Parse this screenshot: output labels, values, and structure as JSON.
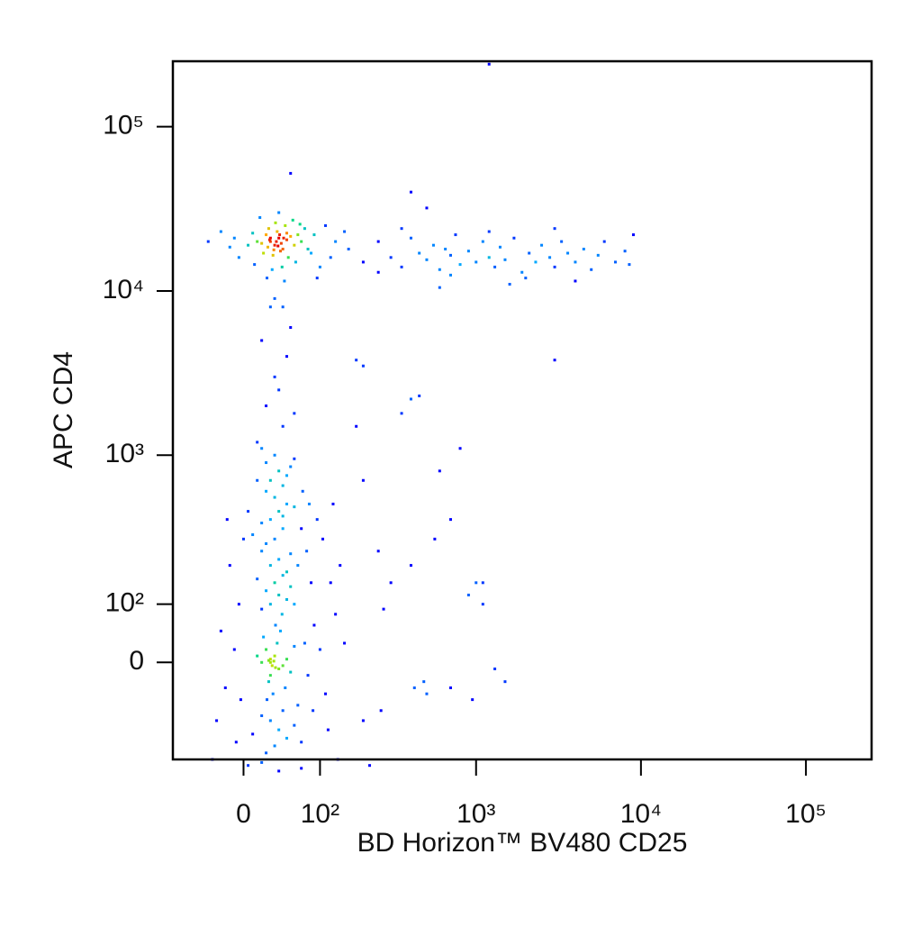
{
  "chart_data": {
    "type": "scatter",
    "x_label": "BD Horizon™ BV480 CD25",
    "y_label": "APC CD4",
    "xscale": "biexponential",
    "yscale": "biexponential",
    "color_by": "density",
    "xlim": [
      -90,
      250000
    ],
    "ylim": [
      -200,
      250000
    ],
    "xticks": [
      0,
      {
        "value": 100,
        "label": "10²"
      },
      {
        "value": 1000,
        "label": "10³"
      },
      {
        "value": 10000,
        "label": "10⁴"
      },
      {
        "value": 100000,
        "label": "10⁵"
      }
    ],
    "yticks": [
      0,
      {
        "value": 100,
        "label": "10²"
      },
      {
        "value": 1000,
        "label": "10³"
      },
      {
        "value": 10000,
        "label": "10⁴"
      },
      {
        "value": 100000,
        "label": "10⁵"
      }
    ],
    "x": [
      30,
      35,
      40,
      25,
      45,
      50,
      20,
      38,
      42,
      28,
      55,
      15,
      60,
      33,
      48,
      10,
      65,
      22,
      52,
      36,
      5,
      70,
      -10,
      80,
      -25,
      44,
      32,
      58,
      18,
      75,
      -5,
      90,
      26,
      62,
      40,
      12,
      85,
      47,
      -15,
      68,
      30,
      37,
      43,
      27,
      50,
      34,
      41,
      29,
      46,
      39,
      110,
      130,
      150,
      120,
      100,
      -40,
      95,
      35,
      45,
      55,
      160,
      200,
      250,
      300,
      350,
      400,
      450,
      500,
      550,
      600,
      650,
      700,
      750,
      800,
      900,
      1000,
      1100,
      1200,
      1300,
      1400,
      1500,
      1700,
      1900,
      2100,
      2300,
      2500,
      2800,
      3000,
      3300,
      3600,
      4000,
      4500,
      5000,
      5500,
      6000,
      7000,
      8000,
      8500,
      9000,
      250,
      350,
      700,
      1200,
      2000,
      3000,
      1600,
      600,
      4000,
      400,
      500,
      20,
      35,
      50,
      25,
      45,
      30,
      40,
      55,
      15,
      60,
      200,
      180,
      400,
      450,
      3000,
      30,
      35,
      40,
      25,
      45,
      20,
      50,
      30,
      38,
      28,
      42,
      33,
      22,
      55,
      15,
      60,
      48,
      36,
      26,
      44,
      30,
      40,
      20,
      50,
      35,
      25,
      45,
      55,
      15,
      60,
      30,
      40,
      20,
      50,
      35,
      25,
      45,
      55,
      10,
      65,
      30,
      40,
      20,
      50,
      35,
      25,
      45,
      60,
      5,
      70,
      30,
      40,
      20,
      50,
      35,
      25,
      45,
      60,
      10,
      65,
      -10,
      -20,
      -5,
      -15,
      -25,
      -30,
      0,
      -8,
      -18,
      -3,
      75,
      80,
      85,
      90,
      70,
      78,
      88,
      95,
      72,
      82,
      30,
      40,
      25,
      45,
      35,
      50,
      20,
      55,
      15,
      60,
      100,
      110,
      120,
      105,
      130,
      115,
      140,
      125,
      150,
      135,
      -35,
      5,
      40,
      70,
      20,
      30,
      32,
      28,
      36,
      34,
      200,
      250,
      300,
      400,
      500,
      600,
      700,
      800,
      900,
      1000,
      1100,
      1500,
      950,
      200,
      260,
      420,
      480,
      180,
      220,
      700,
      350,
      1300,
      1100,
      560,
      270,
      1200
    ],
    "values": [
      20000,
      19000,
      21000,
      22000,
      18000,
      20500,
      19500,
      23000,
      17500,
      24000,
      21500,
      20000,
      19000,
      16500,
      25000,
      22500,
      22000,
      17000,
      16000,
      26000,
      19000,
      20000,
      21000,
      18000,
      23000,
      14000,
      13500,
      27000,
      28000,
      24000,
      16000,
      22000,
      12000,
      15000,
      30000,
      14500,
      17000,
      11500,
      18500,
      25500,
      21000,
      20000,
      19500,
      18500,
      22500,
      17800,
      22000,
      20500,
      21000,
      18800,
      25000,
      20000,
      23000,
      16000,
      14000,
      20000,
      12000,
      9000,
      8000,
      52000,
      18000,
      15000,
      20000,
      16000,
      14000,
      21000,
      17000,
      15500,
      19000,
      13500,
      18000,
      16500,
      22000,
      14500,
      17500,
      15000,
      20000,
      16000,
      14000,
      18500,
      15500,
      21000,
      13000,
      17000,
      15000,
      19000,
      16000,
      14000,
      20000,
      17000,
      15000,
      18000,
      13500,
      16500,
      20000,
      15000,
      17500,
      14500,
      22000,
      13000,
      24000,
      12500,
      23000,
      12000,
      24000,
      11000,
      10500,
      11500,
      40000,
      32000,
      5000,
      3000,
      4000,
      2000,
      1500,
      8000,
      2500,
      6000,
      1200,
      1800,
      3500,
      3800,
      2200,
      2300,
      3800,
      0,
      10,
      -10,
      20,
      -5,
      0,
      5,
      -20,
      30,
      -30,
      50,
      -50,
      40,
      -15,
      10,
      25,
      -40,
      60,
      -60,
      80,
      100,
      120,
      90,
      110,
      150,
      130,
      170,
      140,
      160,
      100,
      200,
      220,
      250,
      180,
      300,
      280,
      350,
      240,
      320,
      200,
      400,
      450,
      380,
      500,
      550,
      600,
      420,
      480,
      450,
      350,
      -100,
      -120,
      -90,
      -140,
      -160,
      -180,
      -80,
      -110,
      -130,
      -70,
      20,
      -40,
      100,
      200,
      50,
      -100,
      300,
      -150,
      400,
      -60,
      30,
      -20,
      150,
      60,
      -150,
      250,
      -80,
      400,
      600,
      500,
      700,
      800,
      900,
      650,
      1000,
      750,
      1100,
      850,
      700,
      950,
      20,
      -50,
      150,
      300,
      80,
      -120,
      200,
      500,
      30,
      -200,
      -200,
      -220,
      -240,
      -230,
      -210,
      5,
      -5,
      3,
      -8,
      2,
      700,
      250,
      150,
      200,
      -50,
      800,
      400,
      1100,
      120,
      150,
      100,
      -30,
      -60,
      -100,
      -80,
      -40,
      -30,
      1500,
      -220,
      -40,
      1800,
      -10,
      150,
      300,
      90,
      240000
    ]
  }
}
